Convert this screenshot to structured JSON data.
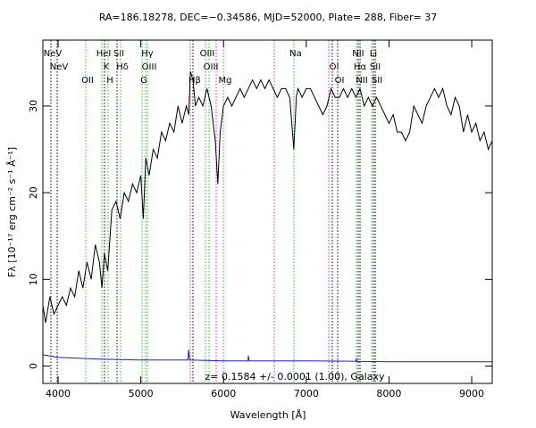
{
  "chart_data": {
    "type": "line",
    "title": "RA=186.18278, DEC=−0.34586, MJD=52000, Plate= 288, Fiber= 37",
    "annotation": "z= 0.1584 +/- 0.0001 (1.00), Galaxy",
    "x_label": "Wavelength [Å]",
    "y_label": "Fλ [10⁻¹⁷ erg cm⁻² s⁻¹ Å⁻¹]",
    "xlim": [
      3816,
      9248
    ],
    "ylim": [
      -2,
      37.6
    ],
    "xticks": [
      4000,
      5000,
      6000,
      7000,
      8000,
      9000
    ],
    "yticks": [
      0,
      10,
      20,
      30
    ],
    "series": [
      {
        "color": "#000000",
        "x": [
          3816,
          3850,
          3900,
          3950,
          4000,
          4050,
          4100,
          4150,
          4200,
          4250,
          4300,
          4350,
          4400,
          4450,
          4500,
          4530,
          4560,
          4600,
          4650,
          4700,
          4750,
          4800,
          4850,
          4900,
          4950,
          5000,
          5030,
          5060,
          5100,
          5150,
          5200,
          5250,
          5300,
          5350,
          5400,
          5450,
          5500,
          5550,
          5580,
          5600,
          5630,
          5660,
          5700,
          5750,
          5800,
          5850,
          5900,
          5930,
          5960,
          6000,
          6050,
          6100,
          6150,
          6200,
          6250,
          6300,
          6350,
          6400,
          6450,
          6500,
          6550,
          6600,
          6650,
          6700,
          6750,
          6800,
          6850,
          6880,
          6900,
          6950,
          7000,
          7050,
          7100,
          7150,
          7200,
          7250,
          7300,
          7350,
          7400,
          7450,
          7500,
          7550,
          7600,
          7650,
          7700,
          7750,
          7800,
          7850,
          7900,
          7950,
          8000,
          8050,
          8100,
          8150,
          8200,
          8250,
          8300,
          8350,
          8400,
          8450,
          8500,
          8550,
          8600,
          8650,
          8700,
          8750,
          8800,
          8850,
          8900,
          8950,
          9000,
          9050,
          9100,
          9150,
          9200,
          9248
        ],
        "values": [
          7,
          5,
          8,
          6,
          7,
          8,
          7,
          9,
          8,
          11,
          9,
          12,
          10,
          14,
          12,
          9,
          13,
          11,
          18,
          19,
          17,
          20,
          19,
          21,
          20,
          22,
          17,
          24,
          22,
          25,
          24,
          27,
          26,
          28,
          27,
          30,
          28,
          30,
          29,
          34,
          33,
          30,
          31,
          30,
          32,
          30,
          26,
          21,
          27,
          30,
          31,
          30,
          31,
          32,
          31,
          32,
          33,
          32,
          33,
          32,
          33,
          32,
          31,
          32,
          32,
          31,
          25,
          31,
          32,
          31,
          32,
          32,
          31,
          30,
          29,
          30,
          32,
          31,
          31,
          32,
          31,
          32,
          31,
          32,
          30,
          31,
          30,
          31,
          30,
          29,
          28,
          29,
          27,
          27,
          26,
          27,
          30,
          29,
          28,
          30,
          31,
          32,
          31,
          32,
          30,
          29,
          31,
          30,
          27,
          29,
          27,
          28,
          26,
          27,
          25,
          26
        ]
      },
      {
        "color": "#1f1fd0",
        "x": [
          3816,
          4000,
          4500,
          5000,
          5570,
          5577,
          5590,
          6000,
          6295,
          6300,
          6310,
          7000,
          7600,
          7605,
          7615,
          8000,
          9248
        ],
        "values": [
          1.3,
          1.0,
          0.8,
          0.7,
          0.7,
          1.9,
          0.7,
          0.6,
          0.6,
          1.2,
          0.6,
          0.6,
          0.55,
          0.9,
          0.55,
          0.5,
          0.5
        ]
      }
    ],
    "lines": [
      {
        "wavelength": 3913,
        "label": "NeV",
        "color": "#000000"
      },
      {
        "wavelength": 3989,
        "label": "NeV",
        "color": "#000000"
      },
      {
        "wavelength": 4334,
        "label": "OII",
        "color": "#22c022"
      },
      {
        "wavelength": 4529,
        "label": "HeI",
        "color": "#22c022"
      },
      {
        "wavelength": 4561,
        "label": "K",
        "color": "#000000"
      },
      {
        "wavelength": 4604,
        "label": "H",
        "color": "#22c022"
      },
      {
        "wavelength": 4712,
        "label": "SII",
        "color": "#000000"
      },
      {
        "wavelength": 4756,
        "label": "Hδ",
        "color": "#22c022"
      },
      {
        "wavelength": 5015,
        "label": "G",
        "color": "#22c022"
      },
      {
        "wavelength": 5058,
        "label": "Hγ",
        "color": "#22c022"
      },
      {
        "wavelength": 5080,
        "label": "OIII",
        "color": "#22c022"
      },
      {
        "wavelength": 5630,
        "label": "Hβ",
        "color": "#000000"
      },
      {
        "wavelength": 5781,
        "label": "OIII",
        "color": "#22c022"
      },
      {
        "wavelength": 5825,
        "label": "OIII",
        "color": "#22c022"
      },
      {
        "wavelength": 5998,
        "label": "Mg",
        "color": "#22c022"
      },
      {
        "wavelength": 6850,
        "label": "Na",
        "color": "#22c022"
      },
      {
        "wavelength": 7315,
        "label": "OI",
        "color": "#000000"
      },
      {
        "wavelength": 7380,
        "label": "OI",
        "color": "#000000"
      },
      {
        "wavelength": 7606,
        "label": "NII",
        "color": "#22c022"
      },
      {
        "wavelength": 7628,
        "label": "Hα",
        "color": "#000000"
      },
      {
        "wavelength": 7650,
        "label": "NII",
        "color": "#000000"
      },
      {
        "wavelength": 7790,
        "label": "Li",
        "color": "#22c022"
      },
      {
        "wavelength": 7812,
        "label": "SII",
        "color": "#000000"
      },
      {
        "wavelength": 7834,
        "label": "SII",
        "color": "#000000"
      }
    ],
    "sky_lines": {
      "color": "#e020e0",
      "wavelengths": [
        5598,
        5911,
        6613,
        7272
      ]
    }
  }
}
